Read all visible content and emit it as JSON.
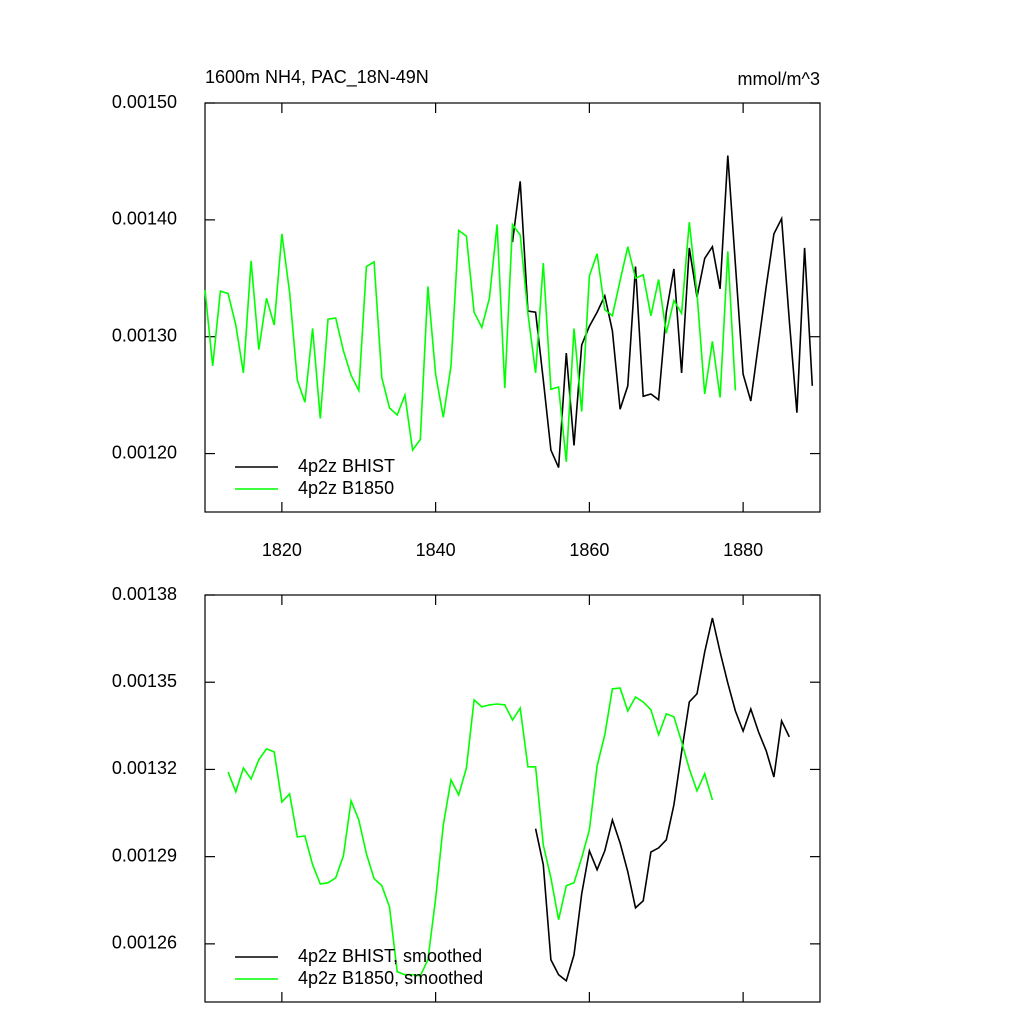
{
  "chart_data": [
    {
      "type": "line",
      "title": "1600m NH4, PAC_18N-49N",
      "units_label": "mmol/m^3",
      "xlim": [
        1810,
        1890
      ],
      "xticks": [
        1820,
        1840,
        1860,
        1880
      ],
      "ylim": [
        0.00115,
        0.0015
      ],
      "yticks": [
        {
          "value": 0.0012,
          "label": "0.00120"
        },
        {
          "value": 0.0013,
          "label": "0.00130"
        },
        {
          "value": 0.0014,
          "label": "0.00140"
        },
        {
          "value": 0.0015,
          "label": "0.00150"
        }
      ],
      "legend": "lower left",
      "series": [
        {
          "name": "4p2z BHIST",
          "color": "#000000",
          "x": [
            1850,
            1851,
            1852,
            1853,
            1854,
            1855,
            1856,
            1857,
            1858,
            1859,
            1860,
            1861,
            1862,
            1863,
            1864,
            1865,
            1866,
            1867,
            1868,
            1869,
            1870,
            1871,
            1872,
            1873,
            1874,
            1875,
            1876,
            1877,
            1878,
            1879,
            1880,
            1881,
            1882,
            1883,
            1884,
            1885,
            1886,
            1887,
            1888,
            1889
          ],
          "values": [
            0.001381,
            0.001433,
            0.001322,
            0.001321,
            0.001263,
            0.001203,
            0.001188,
            0.001286,
            0.001207,
            0.001293,
            0.001309,
            0.001321,
            0.001335,
            0.001305,
            0.001238,
            0.001258,
            0.00136,
            0.001249,
            0.001251,
            0.001246,
            0.001321,
            0.001358,
            0.001269,
            0.001376,
            0.001334,
            0.001367,
            0.001377,
            0.001341,
            0.001455,
            0.001362,
            0.001268,
            0.001245,
            0.001294,
            0.001343,
            0.001388,
            0.001401,
            0.001314,
            0.001235,
            0.001376,
            0.001258
          ]
        },
        {
          "name": "4p2z B1850",
          "color": "#00ff00",
          "x": [
            1810,
            1811,
            1812,
            1813,
            1814,
            1815,
            1816,
            1817,
            1818,
            1819,
            1820,
            1821,
            1822,
            1823,
            1824,
            1825,
            1826,
            1827,
            1828,
            1829,
            1830,
            1831,
            1832,
            1833,
            1834,
            1835,
            1836,
            1837,
            1838,
            1839,
            1840,
            1841,
            1842,
            1843,
            1844,
            1845,
            1846,
            1847,
            1848,
            1849,
            1850,
            1851,
            1852,
            1853,
            1854,
            1855,
            1856,
            1857,
            1858,
            1859,
            1860,
            1861,
            1862,
            1863,
            1864,
            1865,
            1866,
            1867,
            1868,
            1869,
            1870,
            1871,
            1872,
            1873,
            1874,
            1875,
            1876,
            1877,
            1878,
            1879
          ],
          "values": [
            0.00134,
            0.001275,
            0.001339,
            0.001337,
            0.00131,
            0.001269,
            0.001365,
            0.001289,
            0.001333,
            0.00131,
            0.001388,
            0.001338,
            0.001263,
            0.001244,
            0.001307,
            0.00123,
            0.001315,
            0.001316,
            0.001288,
            0.001267,
            0.001254,
            0.00136,
            0.001364,
            0.001265,
            0.001239,
            0.001233,
            0.00125,
            0.001203,
            0.001212,
            0.001343,
            0.001268,
            0.001231,
            0.001275,
            0.001391,
            0.001386,
            0.001321,
            0.001308,
            0.001333,
            0.001396,
            0.001256,
            0.001396,
            0.001387,
            0.00132,
            0.001269,
            0.001363,
            0.001255,
            0.001257,
            0.001193,
            0.001307,
            0.001236,
            0.001352,
            0.001371,
            0.001323,
            0.001318,
            0.001348,
            0.001377,
            0.00135,
            0.001353,
            0.001318,
            0.001349,
            0.001303,
            0.001331,
            0.00132,
            0.001398,
            0.001337,
            0.001251,
            0.001296,
            0.001248,
            0.001373,
            0.001254
          ]
        }
      ]
    },
    {
      "type": "line",
      "xlim": [
        1810,
        1890
      ],
      "xticks": [
        1820,
        1840,
        1860,
        1880
      ],
      "ylim": [
        0.00124,
        0.00138
      ],
      "yticks": [
        {
          "value": 0.00126,
          "label": "0.00126"
        },
        {
          "value": 0.00129,
          "label": "0.00129"
        },
        {
          "value": 0.00132,
          "label": "0.00132"
        },
        {
          "value": 0.00135,
          "label": "0.00135"
        },
        {
          "value": 0.00138,
          "label": "0.00138"
        }
      ],
      "legend": "lower left",
      "series": [
        {
          "name": "4p2z BHIST, smoothed",
          "color": "#000000",
          "x": [
            1853,
            1854,
            1855,
            1856,
            1857,
            1858,
            1859,
            1860,
            1861,
            1862,
            1863,
            1864,
            1865,
            1866,
            1867,
            1868,
            1869,
            1870,
            1871,
            1872,
            1873,
            1874,
            1875,
            1876,
            1877,
            1878,
            1879,
            1880,
            1881,
            1882,
            1883,
            1884,
            1885,
            1886
          ],
          "values": [
            0.0012996,
            0.0012872,
            0.0012545,
            0.0012494,
            0.0012473,
            0.0012562,
            0.0012772,
            0.001292,
            0.0012855,
            0.001292,
            0.0013026,
            0.0012947,
            0.0012848,
            0.0012724,
            0.0012748,
            0.0012916,
            0.001293,
            0.0012958,
            0.0013078,
            0.001326,
            0.0013432,
            0.001346,
            0.0013604,
            0.0013721,
            0.0013604,
            0.0013497,
            0.0013401,
            0.0013332,
            0.0013408,
            0.0013329,
            0.0013264,
            0.0013174,
            0.0013367,
            0.0013312
          ]
        },
        {
          "name": "4p2z B1850, smoothed",
          "color": "#00ff00",
          "x": [
            1813,
            1814,
            1815,
            1816,
            1817,
            1818,
            1819,
            1820,
            1821,
            1822,
            1823,
            1824,
            1825,
            1826,
            1827,
            1828,
            1829,
            1830,
            1831,
            1832,
            1833,
            1834,
            1835,
            1836,
            1837,
            1838,
            1839,
            1840,
            1841,
            1842,
            1843,
            1844,
            1845,
            1846,
            1847,
            1848,
            1849,
            1850,
            1851,
            1852,
            1853,
            1854,
            1855,
            1856,
            1857,
            1858,
            1859,
            1860,
            1861,
            1862,
            1863,
            1864,
            1865,
            1866,
            1867,
            1868,
            1869,
            1870,
            1871,
            1872,
            1873,
            1874,
            1875,
            1876
          ],
          "values": [
            0.0013191,
            0.0013123,
            0.0013205,
            0.0013167,
            0.0013233,
            0.0013271,
            0.001326,
            0.0013088,
            0.0013116,
            0.0012968,
            0.0012971,
            0.0012872,
            0.0012806,
            0.001281,
            0.0012827,
            0.0012903,
            0.0013092,
            0.0013026,
            0.001291,
            0.0012824,
            0.00128,
            0.0012727,
            0.0012504,
            0.0012494,
            0.0012494,
            0.001249,
            0.0012545,
            0.0012755,
            0.0013009,
            0.0013164,
            0.0013112,
            0.0013205,
            0.0013439,
            0.0013415,
            0.0013422,
            0.0013425,
            0.0013422,
            0.001337,
            0.0013411,
            0.0013209,
            0.0013209,
            0.001294,
            0.0012827,
            0.0012683,
            0.00128,
            0.001281,
            0.0012896,
            0.0012992,
            0.0013212,
            0.0013319,
            0.0013477,
            0.001348,
            0.0013401,
            0.0013449,
            0.0013432,
            0.0013405,
            0.0013319,
            0.0013391,
            0.0013381,
            0.0013295,
            0.0013202,
            0.0013126,
            0.0013185,
            0.0013095
          ]
        }
      ]
    }
  ]
}
